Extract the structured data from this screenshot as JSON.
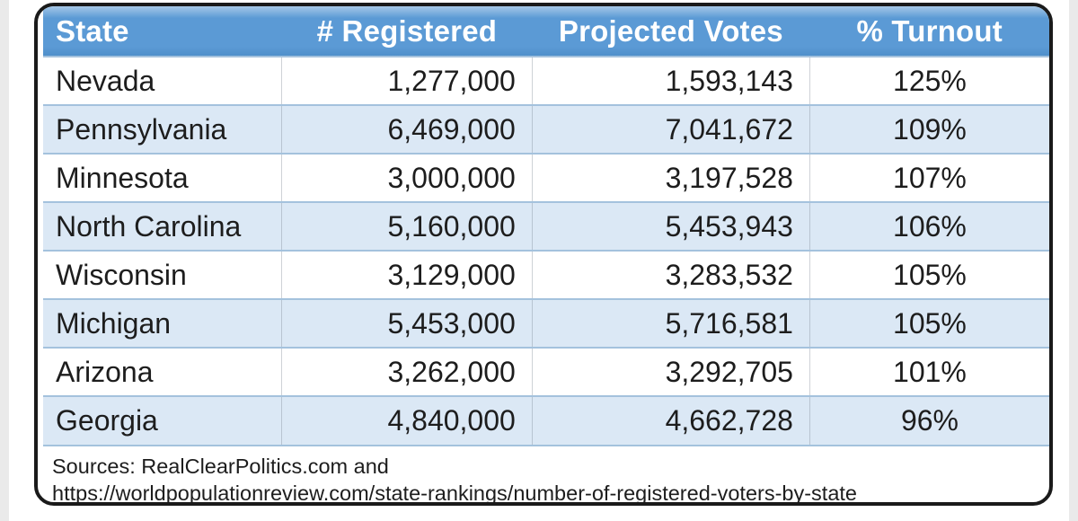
{
  "colors": {
    "header_blue": "#5b9ad5",
    "header_blue_light": "#a6c8e8",
    "row_alt_blue": "#dbe8f5",
    "row_line": "#a4c2dd",
    "card_border": "#1a1a1a",
    "text": "#1d1d1d",
    "header_text": "#ffffff"
  },
  "chart_data": {
    "type": "table",
    "title": "",
    "columns": [
      "State",
      "# Registered",
      "Projected Votes",
      "% Turnout"
    ],
    "col_keys": [
      "state",
      "registered",
      "projected-votes",
      "pct-turnout"
    ],
    "aligns": [
      "left",
      "right",
      "right",
      "center"
    ],
    "rows": [
      [
        "Nevada",
        "1,277,000",
        "1,593,143",
        "125%"
      ],
      [
        "Pennsylvania",
        "6,469,000",
        "7,041,672",
        "109%"
      ],
      [
        "Minnesota",
        "3,000,000",
        "3,197,528",
        "107%"
      ],
      [
        "North Carolina",
        "5,160,000",
        "5,453,943",
        "106%"
      ],
      [
        "Wisconsin",
        "3,129,000",
        "3,283,532",
        "105%"
      ],
      [
        "Michigan",
        "5,453,000",
        "5,716,581",
        "105%"
      ],
      [
        "Arizona",
        "3,262,000",
        "3,292,705",
        "101%"
      ],
      [
        "Georgia",
        "4,840,000",
        "4,662,728",
        "96%"
      ]
    ],
    "numeric": {
      "registered": [
        1277000,
        6469000,
        3000000,
        5160000,
        3129000,
        5453000,
        3262000,
        4840000
      ],
      "projected_votes": [
        1593143,
        7041672,
        3197528,
        5453943,
        3283532,
        5716581,
        3292705,
        4662728
      ],
      "pct_turnout": [
        125,
        109,
        107,
        106,
        105,
        105,
        101,
        96
      ]
    },
    "legend": "none",
    "grid": "row and column rules, alternating row shading"
  },
  "footer": {
    "line1": "Sources: RealClearPolitics.com and",
    "line2": "https://worldpopulationreview.com/state-rankings/number-of-registered-voters-by-state"
  }
}
